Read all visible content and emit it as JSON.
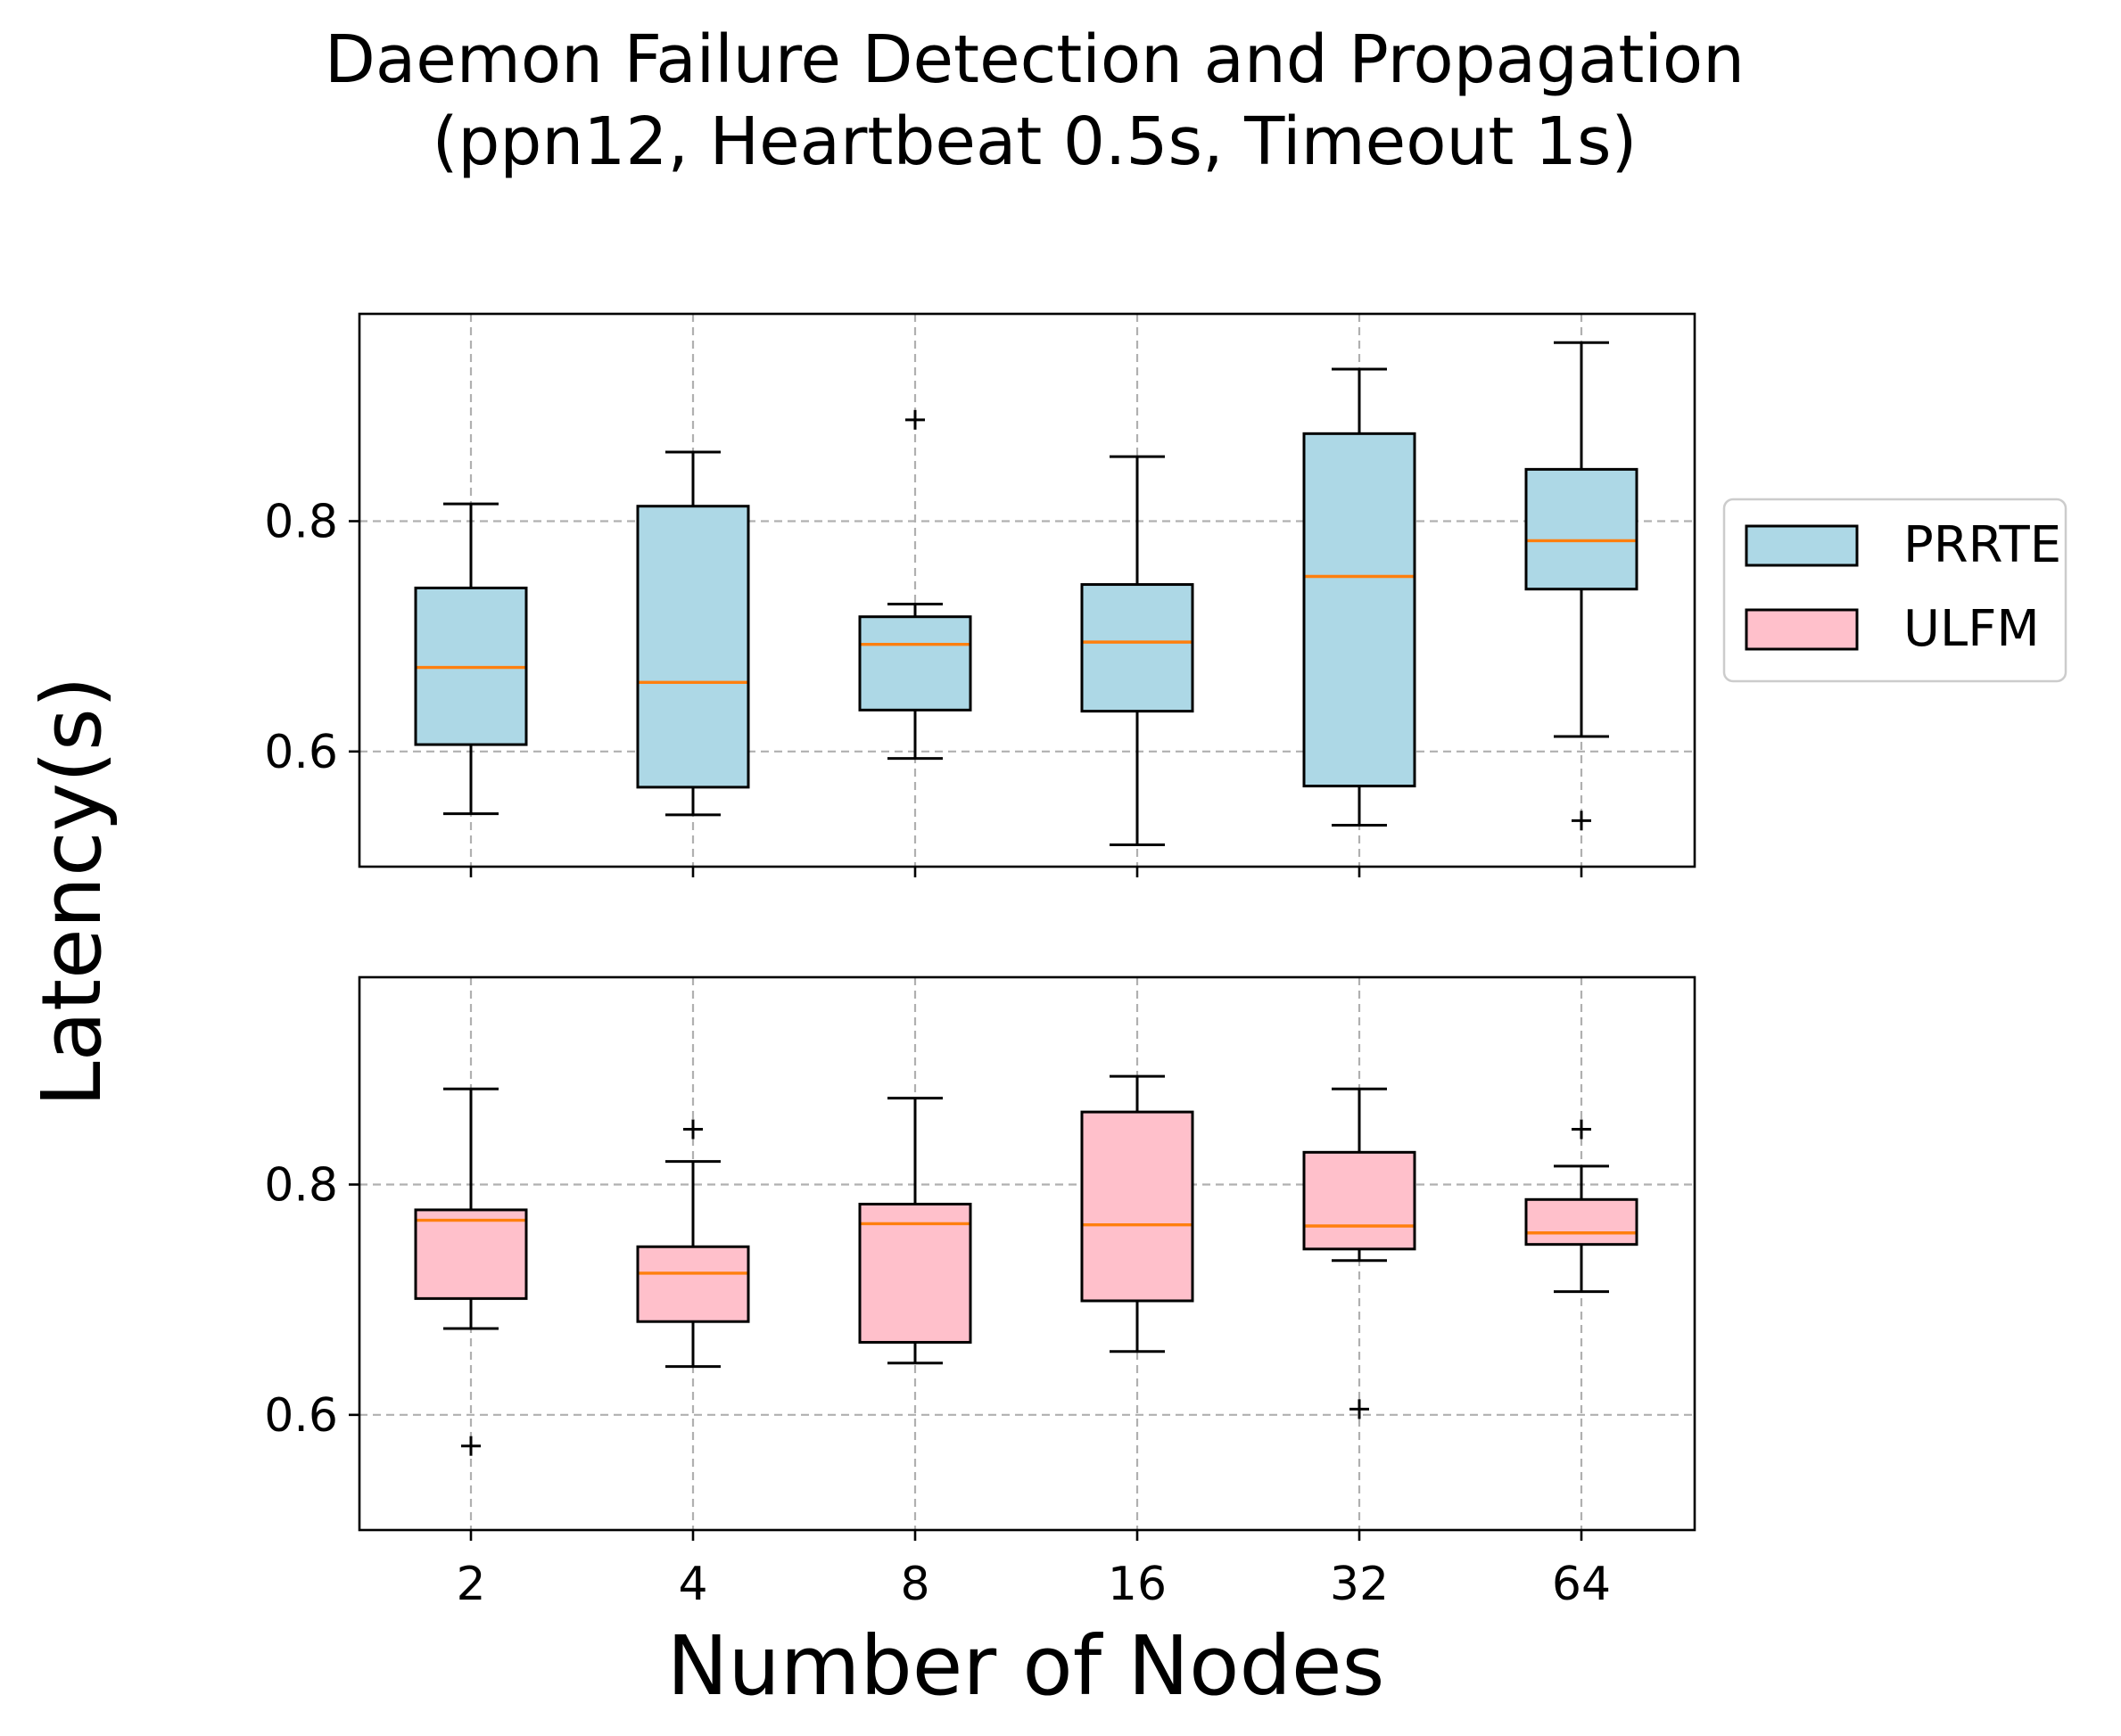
{
  "chart_data": {
    "type": "box",
    "title": "Daemon Failure Detection and Propagation",
    "subtitle": "(ppn12, Heartbeat 0.5s, Timeout 1s)",
    "xlabel": "Number of Nodes",
    "ylabel": "Latency(s)",
    "categories": [
      "2",
      "4",
      "8",
      "16",
      "32",
      "64"
    ],
    "ylim": [
      0.5,
      0.98
    ],
    "yticks": [
      0.6,
      0.8
    ],
    "yticklabels": [
      "0.6",
      "0.8"
    ],
    "grid": true,
    "legend_position": "right",
    "median_color": "#ff7f0e",
    "series": [
      {
        "name": "PRRTE",
        "color": "#add8e6",
        "boxes": [
          {
            "whislo": 0.546,
            "q1": 0.606,
            "med": 0.673,
            "q3": 0.742,
            "whishi": 0.815,
            "fliers": []
          },
          {
            "whislo": 0.545,
            "q1": 0.569,
            "med": 0.66,
            "q3": 0.813,
            "whishi": 0.86,
            "fliers": []
          },
          {
            "whislo": 0.594,
            "q1": 0.636,
            "med": 0.693,
            "q3": 0.717,
            "whishi": 0.728,
            "fliers": [
              0.888
            ]
          },
          {
            "whislo": 0.519,
            "q1": 0.635,
            "med": 0.695,
            "q3": 0.745,
            "whishi": 0.856,
            "fliers": []
          },
          {
            "whislo": 0.536,
            "q1": 0.57,
            "med": 0.752,
            "q3": 0.876,
            "whishi": 0.932,
            "fliers": []
          },
          {
            "whislo": 0.613,
            "q1": 0.741,
            "med": 0.783,
            "q3": 0.845,
            "whishi": 0.955,
            "fliers": [
              0.54
            ]
          }
        ]
      },
      {
        "name": "ULFM",
        "color": "#ffc0cb",
        "boxes": [
          {
            "whislo": 0.675,
            "q1": 0.701,
            "med": 0.769,
            "q3": 0.778,
            "whishi": 0.883,
            "fliers": [
              0.573
            ]
          },
          {
            "whislo": 0.642,
            "q1": 0.681,
            "med": 0.723,
            "q3": 0.746,
            "whishi": 0.82,
            "fliers": [
              0.848
            ]
          },
          {
            "whislo": 0.645,
            "q1": 0.663,
            "med": 0.766,
            "q3": 0.783,
            "whishi": 0.875,
            "fliers": []
          },
          {
            "whislo": 0.655,
            "q1": 0.699,
            "med": 0.765,
            "q3": 0.863,
            "whishi": 0.894,
            "fliers": []
          },
          {
            "whislo": 0.734,
            "q1": 0.744,
            "med": 0.764,
            "q3": 0.828,
            "whishi": 0.883,
            "fliers": [
              0.605
            ]
          },
          {
            "whislo": 0.707,
            "q1": 0.748,
            "med": 0.758,
            "q3": 0.787,
            "whishi": 0.816,
            "fliers": [
              0.848
            ]
          }
        ]
      }
    ]
  }
}
